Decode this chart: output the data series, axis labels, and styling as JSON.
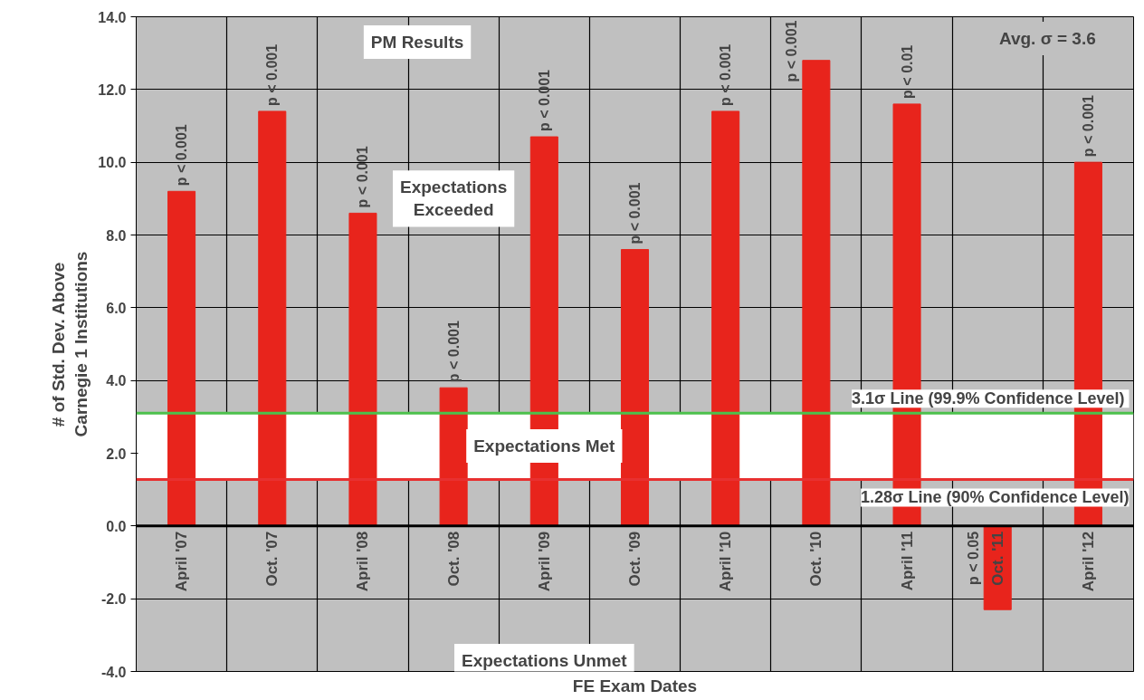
{
  "chart_data": {
    "type": "bar",
    "categories": [
      "April '07",
      "Oct. '07",
      "April '08",
      "Oct. '08",
      "April '09",
      "Oct. '09",
      "April '10",
      "Oct. '10",
      "April '11",
      "Oct. '11",
      "April '12"
    ],
    "values": [
      9.2,
      11.4,
      8.6,
      3.8,
      10.7,
      7.6,
      11.4,
      12.8,
      11.6,
      -2.3,
      10.0
    ],
    "value_labels": [
      "p < 0.001",
      "p < 0.001",
      "p < 0.001",
      "p < 0.001",
      "p < 0.001",
      "p < 0.001",
      "p < 0.001",
      "p < 0.001",
      "p < 0.01",
      "p < 0.05",
      "p < 0.001"
    ],
    "color": "#e8241c",
    "xlabel": "FE Exam Dates",
    "ylabel": "# of Std. Dev. Above\nCarnegie 1 Institutions",
    "ylim": [
      -4,
      14
    ],
    "yticks": [
      {
        "value": -4,
        "label": "-4.0"
      },
      {
        "value": -2,
        "label": "-2.0"
      },
      {
        "value": 0,
        "label": "0.0"
      },
      {
        "value": 2,
        "label": "2.0"
      },
      {
        "value": 4,
        "label": "4.0"
      },
      {
        "value": 6,
        "label": "6.0"
      },
      {
        "value": 8,
        "label": "8.0"
      },
      {
        "value": 10,
        "label": "10.0"
      },
      {
        "value": 12,
        "label": "12.0"
      },
      {
        "value": 14,
        "label": "14.0"
      }
    ],
    "grid": true,
    "ref_lines": [
      {
        "axis": "y",
        "value": 3.1,
        "label": "3.1σ  Line (99.9% Confidence Level)",
        "color": "#4cc04c"
      },
      {
        "axis": "y",
        "value": 1.28,
        "label": "1.28σ Line (90% Confidence Level)",
        "color": "#e83030"
      }
    ],
    "bands": [
      {
        "axis": "y",
        "from": 1.28,
        "to": 3.1,
        "color": "#ffffff"
      }
    ],
    "annotations": [
      "PM Results",
      "Avg. σ = 3.6",
      "Expectations\nExceeded",
      "Expectations Met",
      "Expectations Unmet"
    ]
  }
}
